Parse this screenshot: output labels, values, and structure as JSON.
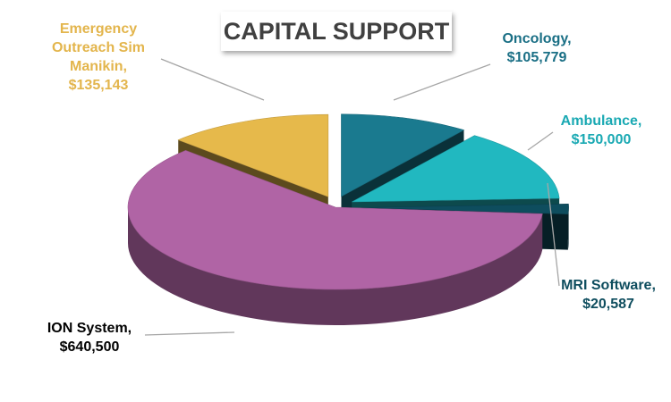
{
  "chart_data": {
    "type": "pie",
    "title": "CAPITAL SUPPORT",
    "categories": [
      "Oncology,",
      "Ambulance,",
      "MRI Software,",
      "ION System,",
      "Emergency Outreach Sim Manikin,"
    ],
    "values": [
      105779,
      150000,
      20587,
      640500,
      135143
    ],
    "value_labels": [
      "$105,779",
      "$150,000",
      "$20,587",
      "$640,500",
      "$135,143"
    ],
    "colors": [
      "#1a7a8f",
      "#21b8c0",
      "#0e4d5e",
      "#b064a5",
      "#e6b94b"
    ]
  }
}
